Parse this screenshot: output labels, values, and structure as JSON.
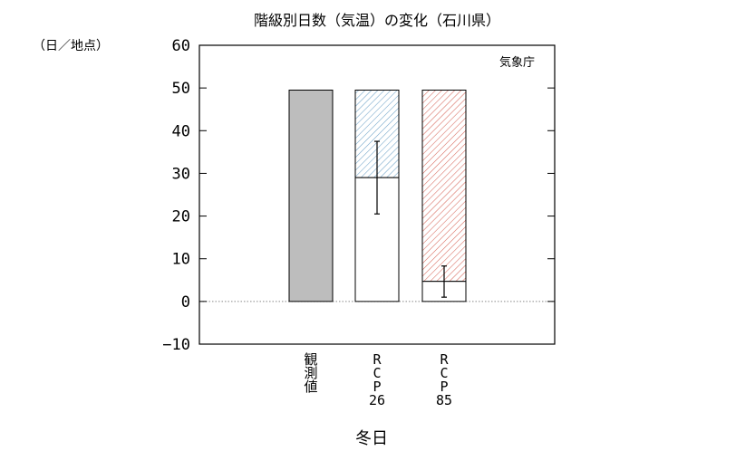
{
  "chart_data": {
    "type": "bar",
    "title": "階級別日数（気温）の変化（石川県）",
    "ylabel": "（日／地点）",
    "xlabel": "冬日",
    "credit": "気象庁",
    "ylim": [
      -10,
      60
    ],
    "yticks": [
      -10,
      0,
      10,
      20,
      30,
      40,
      50,
      60
    ],
    "grid": false,
    "zero_line": true,
    "categories": [
      {
        "label_lines": [
          "観",
          "測",
          "値"
        ]
      },
      {
        "label_lines": [
          "R",
          "C",
          "P",
          "26"
        ]
      },
      {
        "label_lines": [
          "R",
          "C",
          "P",
          "85"
        ]
      }
    ],
    "bars": [
      {
        "present": 49.5,
        "future": null,
        "error_low": null,
        "error_high": null,
        "style": "solid",
        "color": "#bdbdbd"
      },
      {
        "present": 49.5,
        "future": 29.0,
        "error_low": 20.5,
        "error_high": 37.5,
        "style": "hatch",
        "color": "#6fa3c7"
      },
      {
        "present": 49.5,
        "future": 4.7,
        "error_low": 1.0,
        "error_high": 8.3,
        "style": "hatch",
        "color": "#d7685c"
      }
    ]
  }
}
